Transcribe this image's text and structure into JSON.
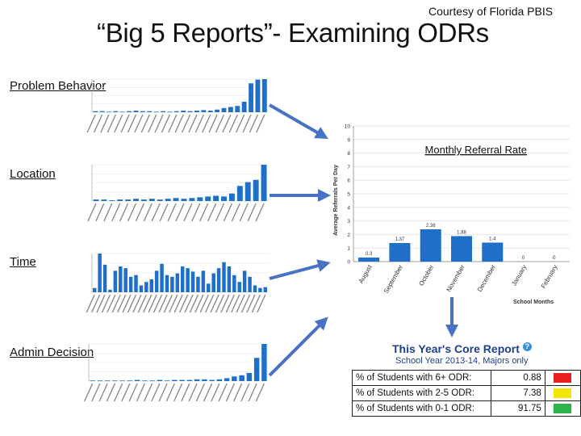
{
  "courtesy": "Courtesy of Florida PBIS",
  "title": "“Big 5 Reports”- Examining ODRs",
  "labels": {
    "problem_behavior": "Problem Behavior",
    "location": "Location",
    "time": "Time",
    "admin_decision": "Admin Decision"
  },
  "chart_data": {
    "type": "bar",
    "title": "Monthly Referral Rate",
    "xlabel": "School Months",
    "ylabel": "Average Referrals Per Day",
    "categories": [
      "August",
      "September",
      "October",
      "November",
      "December",
      "January",
      "February"
    ],
    "values": [
      0.3,
      1.37,
      2.38,
      1.88,
      1.4,
      0,
      0
    ],
    "value_labels": [
      "0.3",
      "1.37",
      "2.38",
      "1.88",
      "1.4",
      "0",
      "0"
    ],
    "yticks": [
      "0",
      "1",
      "2",
      "3",
      "4",
      "5",
      "6",
      "7",
      "8",
      "9",
      "10"
    ],
    "ylim": [
      0,
      10
    ],
    "grid": true,
    "bar_color": "#1f6fc8"
  },
  "core_report": {
    "title": "This Year's Core Report",
    "subtitle": "School Year 2013-14, Majors only",
    "rows": [
      {
        "label": "% of Students with 6+ ODR:",
        "value": "0.88",
        "color": "#e8201f"
      },
      {
        "label": "% of Students with 2-5 ODR:",
        "value": "7.38",
        "color": "#f2e600"
      },
      {
        "label": "% of Students with 0-1 ODR:",
        "value": "91.75",
        "color": "#2db34a"
      }
    ]
  },
  "colors": {
    "bar": "#1f6fc8",
    "arrow": "#4a72c4",
    "report_title": "#1e3f8a"
  },
  "thumbnails": {
    "problem_behavior": [
      2,
      2,
      1,
      2,
      1,
      2,
      3,
      2,
      2,
      1,
      2,
      1,
      2,
      3,
      2,
      3,
      4,
      3,
      5,
      8,
      10,
      12,
      20,
      55,
      62,
      63
    ],
    "location": [
      2,
      2,
      1,
      2,
      2,
      3,
      2,
      3,
      2,
      3,
      4,
      3,
      4,
      5,
      6,
      7,
      6,
      10,
      20,
      25,
      28,
      48
    ],
    "time": [
      5,
      45,
      32,
      3,
      25,
      30,
      28,
      18,
      20,
      8,
      12,
      15,
      25,
      33,
      20,
      18,
      22,
      30,
      28,
      24,
      18,
      25,
      10,
      22,
      28,
      35,
      30,
      20,
      12,
      25,
      18,
      8,
      5,
      6
    ],
    "admin_decision": [
      1,
      1,
      1,
      1,
      1,
      1,
      2,
      1,
      1,
      2,
      1,
      2,
      2,
      2,
      3,
      3,
      2,
      3,
      5,
      8,
      10,
      14,
      40,
      64
    ]
  }
}
